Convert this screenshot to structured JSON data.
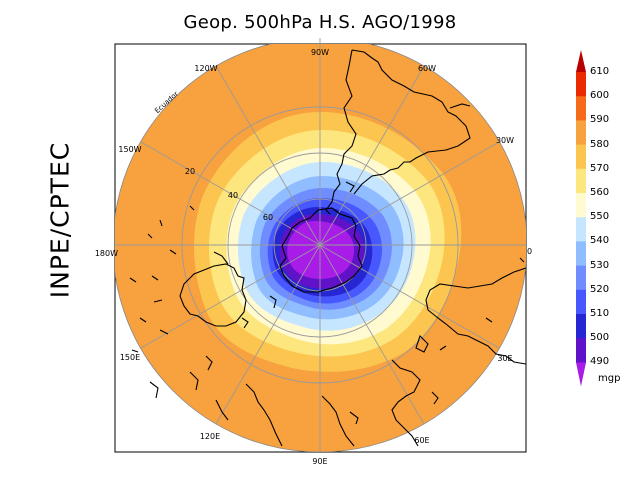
{
  "title": "Geop. 500hPa H.S. AGO/1998",
  "side_label": "INPE/CPTEC",
  "map": {
    "meridian_labels": {
      "top": "90W",
      "bottom": "90E",
      "left": "180W",
      "right": "0",
      "upper_left": "120W",
      "upper_right": "60W",
      "left_upper": "150W",
      "right_upper": "30W",
      "left_lower": "150E",
      "right_lower": "30E",
      "lower_left": "120E",
      "lower_right": "60E"
    },
    "latitude_labels": [
      "20",
      "40",
      "60"
    ],
    "equator_label": "Ecuador"
  },
  "colorbar": {
    "unit": "mgp",
    "levels": [
      "610",
      "600",
      "590",
      "580",
      "570",
      "560",
      "550",
      "540",
      "530",
      "520",
      "510",
      "500",
      "490"
    ],
    "colors": [
      "#b80000",
      "#ea2a00",
      "#f66b1a",
      "#f8a13f",
      "#fbc550",
      "#fde67e",
      "#fffad0",
      "#c6e6ff",
      "#8fbdff",
      "#6f8dff",
      "#4758ff",
      "#2626d2",
      "#6012c8",
      "#a81ce8"
    ]
  }
}
